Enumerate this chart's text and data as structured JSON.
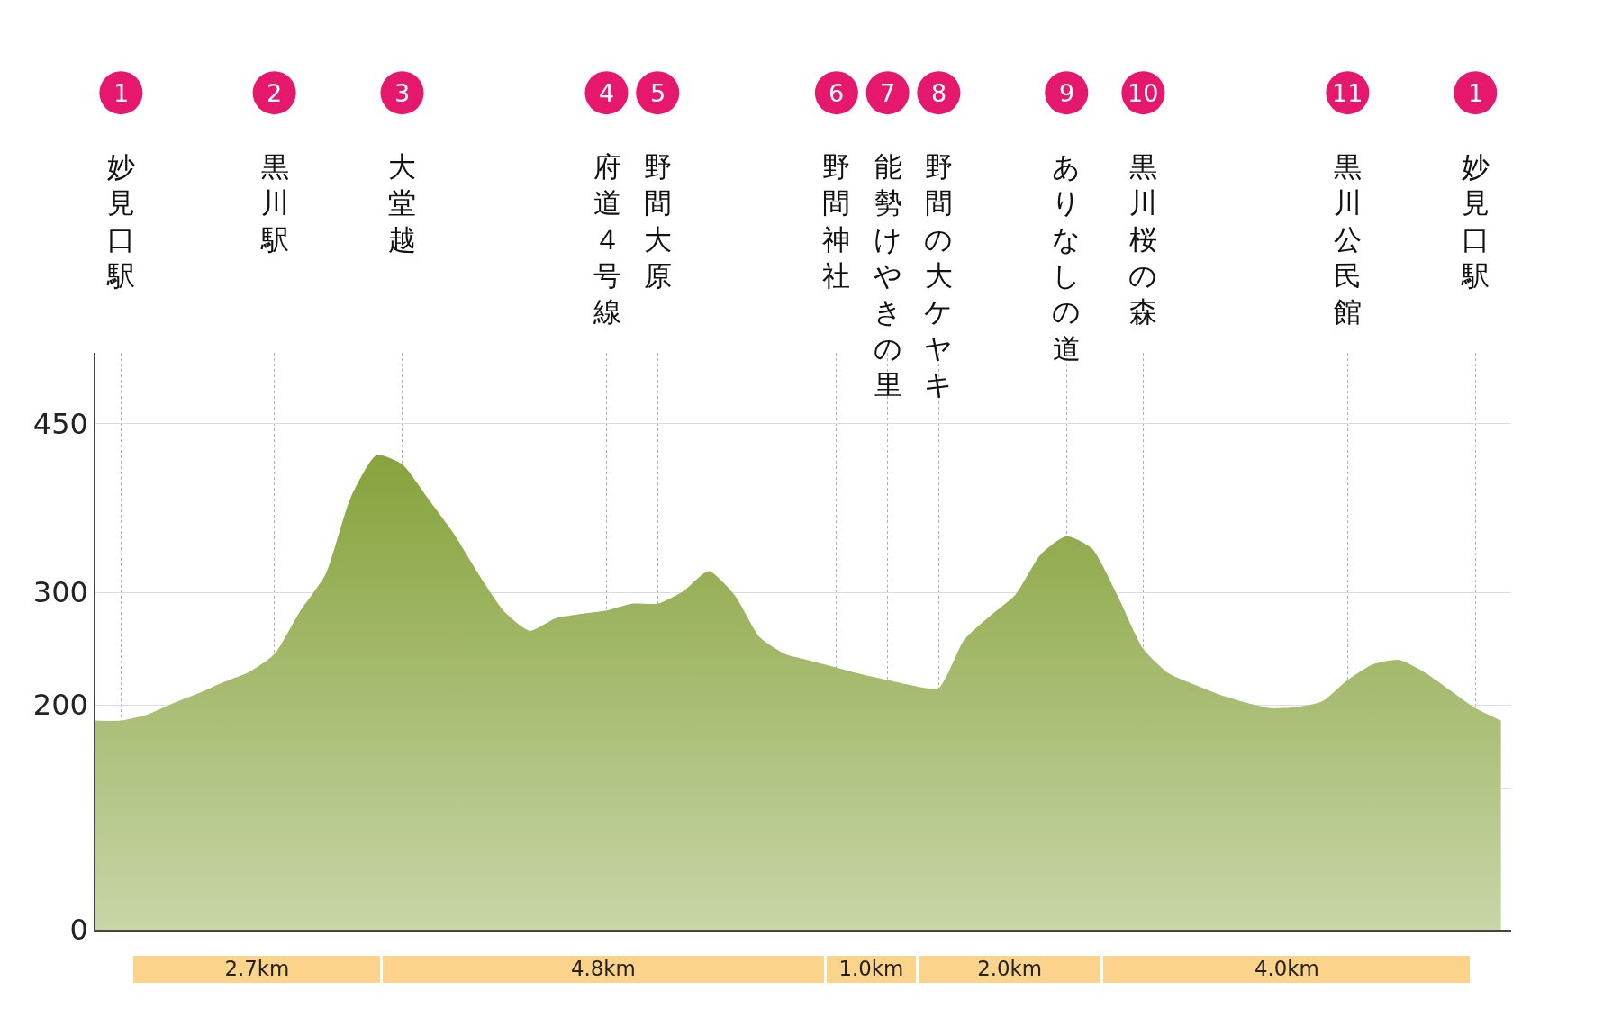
{
  "chart_data": [
    {
      "type": "area",
      "categories": [
        null,
        "妙見口駅",
        null,
        null,
        null,
        null,
        null,
        "黒川駅",
        null,
        null,
        null,
        null,
        "大堂越",
        null,
        null,
        null,
        null,
        null,
        null,
        null,
        "府道４号線",
        null,
        "野間大原",
        null,
        null,
        null,
        null,
        null,
        null,
        "野間神社",
        null,
        "能勢けやきの里",
        null,
        "野間の大ケヤキ",
        null,
        null,
        null,
        null,
        "ありなしの道",
        null,
        null,
        "黒川桜の森",
        null,
        null,
        null,
        null,
        null,
        null,
        null,
        "黒川公民館",
        null,
        null,
        null,
        null,
        "妙見口駅",
        null
      ],
      "series": [
        {
          "color": "#86a33c",
          "values": [
            186,
            186,
            191,
            201,
            210,
            220,
            229,
            245,
            283,
            316,
            385,
            422,
            414,
            384,
            353,
            316,
            283,
            266,
            277,
            281,
            284,
            290,
            290,
            301,
            319,
            298,
            260,
            245,
            239,
            233,
            227,
            222,
            217,
            215,
            258,
            279,
            298,
            334,
            350,
            339,
            297,
            250,
            228,
            218,
            209,
            202,
            197,
            198,
            203,
            222,
            236,
            240,
            229,
            213,
            197,
            186
          ]
        }
      ],
      "ylim": [
        0,
        513
      ],
      "yticks": [
        0,
        {
          "value": 125,
          "label": null
        },
        200,
        300,
        450
      ],
      "grid": true,
      "annotations": [
        "1",
        "2",
        "3",
        "4",
        "5",
        "6",
        "7",
        "8",
        "9",
        "10",
        "11",
        "1"
      ]
    },
    {
      "type": "bar",
      "orientation": "horizontal",
      "stacked": true,
      "categories": [
        null
      ],
      "series": [
        {
          "color": "#fbd38a",
          "values": [
            2.7
          ],
          "value_labels": [
            "2.7km"
          ]
        },
        {
          "color": "#fbd38a",
          "values": [
            4.8
          ],
          "value_labels": [
            "4.8km"
          ]
        },
        {
          "color": "#fbd38a",
          "values": [
            1.0
          ],
          "value_labels": [
            "1.0km"
          ]
        },
        {
          "color": "#fbd38a",
          "values": [
            2.0
          ],
          "value_labels": [
            "2.0km"
          ]
        },
        {
          "color": "#fbd38a",
          "values": [
            4.0
          ],
          "value_labels": [
            "4.0km"
          ]
        }
      ],
      "tick_labels": false
    }
  ]
}
